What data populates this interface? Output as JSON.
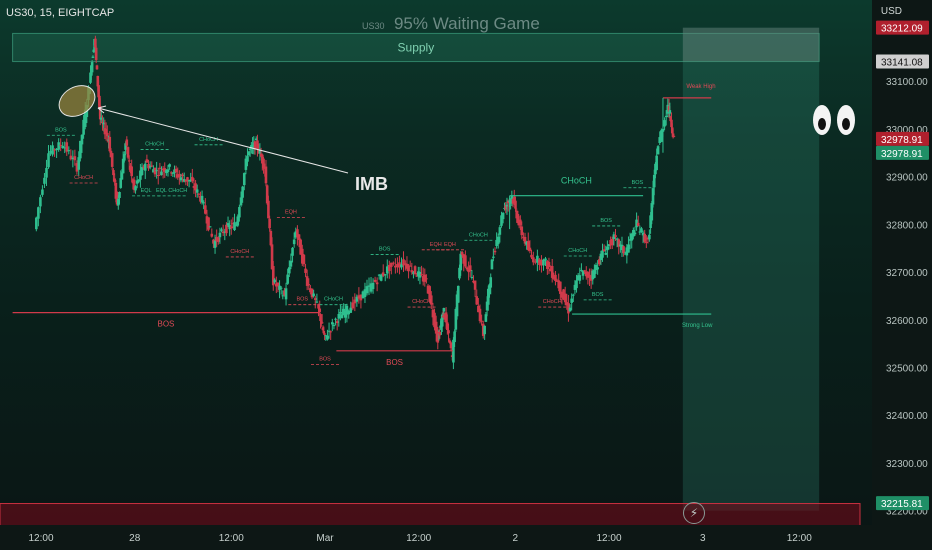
{
  "header": {
    "symbol_line": "US30, 15, EIGHTCAP"
  },
  "watermark": {
    "symbol": "US30",
    "title": "95% Waiting Game"
  },
  "axis": {
    "currency": "USD"
  },
  "colors": {
    "bull": "#2fbf8f",
    "bear": "#d03a4a",
    "green_label": "#35c48f",
    "red_label": "#e04a56"
  },
  "chart_data": {
    "type": "candlestick",
    "symbol": "US30",
    "interval": "15",
    "broker": "EIGHTCAP",
    "y_ticks": [
      33100,
      33000,
      32900,
      32800,
      32700,
      32600,
      32500,
      32400,
      32300,
      32200
    ],
    "ylim": [
      32170,
      33270
    ],
    "x_ticks": [
      {
        "t": 0.0,
        "label": "12:00"
      },
      {
        "t": 0.33,
        "label": "28"
      },
      {
        "t": 0.67,
        "label": "12:00"
      },
      {
        "t": 1.0,
        "label": "Mar"
      },
      {
        "t": 1.33,
        "label": "12:00"
      },
      {
        "t": 1.67,
        "label": "2"
      },
      {
        "t": 2.0,
        "label": "12:00"
      },
      {
        "t": 2.33,
        "label": "3"
      },
      {
        "t": 2.67,
        "label": "12:00"
      }
    ],
    "price_labels": [
      {
        "value": 33212.09,
        "label": "33212.09",
        "style": "red"
      },
      {
        "value": 33141.08,
        "label": "33141.08",
        "style": "gray"
      },
      {
        "value": 32978.91,
        "label": "32978.91",
        "style": "red"
      },
      {
        "value": 32978.91,
        "label": "32978.91",
        "style": "green"
      },
      {
        "value": 32215.81,
        "label": "32215.81",
        "style": "green"
      }
    ],
    "zones": [
      {
        "name": "Supply",
        "from": 33141,
        "to": 33200,
        "t0": -0.1,
        "t1": 2.74
      },
      {
        "name": "",
        "from": 32200,
        "to": 33212,
        "t0": 2.26,
        "t1": 2.74
      },
      {
        "name": "",
        "from": 32115,
        "to": 32215,
        "t0": -0.5,
        "t1": 3.0
      }
    ],
    "annotations": [
      {
        "text": "Supply"
      },
      {
        "text": "IMB"
      },
      {
        "text": "BOS"
      },
      {
        "text": "BOS"
      },
      {
        "text": "CHoCH"
      },
      {
        "text": "Weak High"
      },
      {
        "text": "Strong Low"
      }
    ],
    "levels": [
      {
        "label": "BOS",
        "color": "red",
        "value": 32615,
        "t0": -0.1,
        "t1": 0.98
      },
      {
        "label": "BOS",
        "color": "red",
        "value": 32535,
        "t0": 1.04,
        "t1": 1.45
      },
      {
        "label": "CHoCH",
        "color": "green",
        "value": 32860,
        "t0": 1.65,
        "t1": 2.12
      },
      {
        "label": "Weak High",
        "color": "red",
        "value": 33065,
        "t0": 2.19,
        "t1": 2.36
      },
      {
        "label": "Strong Low",
        "color": "green",
        "value": 32612,
        "t0": 1.87,
        "t1": 2.36
      }
    ],
    "small_tags": [
      {
        "text": "BOS",
        "t": 0.07,
        "v": 32995,
        "c": "green"
      },
      {
        "text": "CHoCH",
        "t": 0.15,
        "v": 32895,
        "c": "red"
      },
      {
        "text": "CHoCH",
        "t": 0.4,
        "v": 32965,
        "c": "green"
      },
      {
        "text": "CHoCH",
        "t": 0.59,
        "v": 32975,
        "c": "green"
      },
      {
        "text": "EQL",
        "t": 0.37,
        "v": 32868,
        "c": "green"
      },
      {
        "text": "EQL CHoCH",
        "t": 0.46,
        "v": 32868,
        "c": "green"
      },
      {
        "text": "CHoCH",
        "t": 0.7,
        "v": 32740,
        "c": "red"
      },
      {
        "text": "EQH",
        "t": 0.88,
        "v": 32823,
        "c": "red"
      },
      {
        "text": "BOS",
        "t": 0.92,
        "v": 32640,
        "c": "red"
      },
      {
        "text": "CHoCH",
        "t": 1.03,
        "v": 32640,
        "c": "green"
      },
      {
        "text": "BOS",
        "t": 1.0,
        "v": 32515,
        "c": "red"
      },
      {
        "text": "BOS",
        "t": 1.21,
        "v": 32745,
        "c": "green"
      },
      {
        "text": "EQH",
        "t": 1.39,
        "v": 32755,
        "c": "red"
      },
      {
        "text": "EQH",
        "t": 1.44,
        "v": 32755,
        "c": "red"
      },
      {
        "text": "CHoCH",
        "t": 1.34,
        "v": 32635,
        "c": "red"
      },
      {
        "text": "CHoCH",
        "t": 1.54,
        "v": 32775,
        "c": "green"
      },
      {
        "text": "CHoCH",
        "t": 1.89,
        "v": 32742,
        "c": "green"
      },
      {
        "text": "BOS",
        "t": 1.99,
        "v": 32805,
        "c": "green"
      },
      {
        "text": "BOS",
        "t": 2.1,
        "v": 32885,
        "c": "green"
      },
      {
        "text": "CHoCH",
        "t": 1.8,
        "v": 32635,
        "c": "red"
      },
      {
        "text": "BOS",
        "t": 1.96,
        "v": 32650,
        "c": "green"
      }
    ],
    "price_path": [
      [
        -0.02,
        32790
      ],
      [
        0.03,
        32950
      ],
      [
        0.08,
        32970
      ],
      [
        0.13,
        32920
      ],
      [
        0.17,
        33080
      ],
      [
        0.19,
        33190
      ],
      [
        0.21,
        33020
      ],
      [
        0.24,
        32980
      ],
      [
        0.27,
        32840
      ],
      [
        0.3,
        32970
      ],
      [
        0.33,
        32870
      ],
      [
        0.37,
        32930
      ],
      [
        0.41,
        32910
      ],
      [
        0.45,
        32920
      ],
      [
        0.49,
        32900
      ],
      [
        0.53,
        32890
      ],
      [
        0.57,
        32850
      ],
      [
        0.61,
        32760
      ],
      [
        0.65,
        32790
      ],
      [
        0.69,
        32800
      ],
      [
        0.73,
        32950
      ],
      [
        0.76,
        32970
      ],
      [
        0.79,
        32920
      ],
      [
        0.82,
        32680
      ],
      [
        0.86,
        32650
      ],
      [
        0.9,
        32790
      ],
      [
        0.94,
        32680
      ],
      [
        0.98,
        32620
      ],
      [
        1.0,
        32560
      ],
      [
        1.04,
        32600
      ],
      [
        1.08,
        32620
      ],
      [
        1.13,
        32650
      ],
      [
        1.18,
        32680
      ],
      [
        1.23,
        32710
      ],
      [
        1.28,
        32720
      ],
      [
        1.32,
        32700
      ],
      [
        1.36,
        32680
      ],
      [
        1.4,
        32560
      ],
      [
        1.42,
        32620
      ],
      [
        1.45,
        32520
      ],
      [
        1.48,
        32740
      ],
      [
        1.52,
        32690
      ],
      [
        1.56,
        32570
      ],
      [
        1.59,
        32720
      ],
      [
        1.63,
        32830
      ],
      [
        1.66,
        32860
      ],
      [
        1.69,
        32790
      ],
      [
        1.73,
        32730
      ],
      [
        1.78,
        32720
      ],
      [
        1.82,
        32680
      ],
      [
        1.86,
        32620
      ],
      [
        1.9,
        32700
      ],
      [
        1.94,
        32690
      ],
      [
        1.98,
        32740
      ],
      [
        2.02,
        32770
      ],
      [
        2.06,
        32740
      ],
      [
        2.1,
        32800
      ],
      [
        2.14,
        32760
      ],
      [
        2.17,
        32950
      ],
      [
        2.21,
        33050
      ],
      [
        2.23,
        32980
      ]
    ]
  }
}
